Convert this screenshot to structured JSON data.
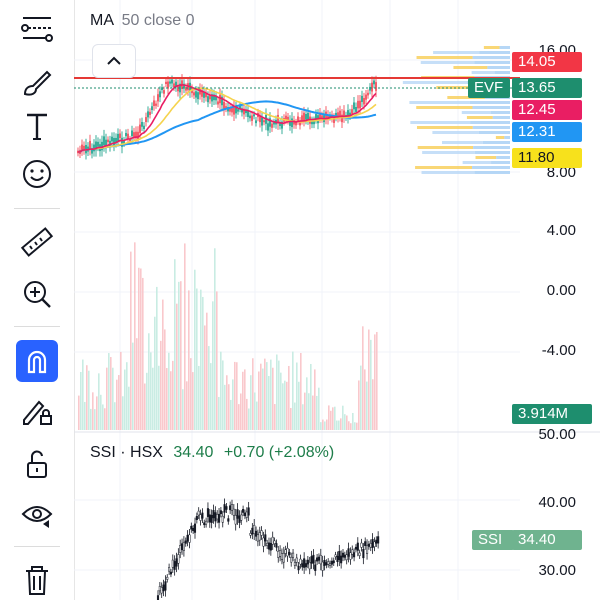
{
  "toolbar": {
    "tools": [
      {
        "name": "trend-line-tool-icon"
      },
      {
        "name": "brush-tool-icon"
      },
      {
        "name": "text-tool-icon"
      },
      {
        "name": "emoji-tool-icon"
      },
      {
        "name": "ruler-tool-icon"
      },
      {
        "name": "zoom-in-tool-icon"
      },
      {
        "name": "magnet-tool-icon",
        "active": true
      },
      {
        "name": "lock-drawing-tool-icon"
      },
      {
        "name": "unlock-icon"
      },
      {
        "name": "eye-visibility-icon"
      },
      {
        "name": "trash-icon"
      }
    ]
  },
  "main_pane": {
    "indicator_legend": {
      "label": "MA",
      "params": "50 close 0"
    },
    "y_axis_labels": [
      "16.00",
      "8.00",
      "4.00",
      "0.00",
      "-4.00",
      "50.00"
    ],
    "price_tags": [
      {
        "text": "14.05",
        "color": "#f23645"
      },
      {
        "text": "EVF",
        "color": "#1e8e6e"
      },
      {
        "text": "13.65",
        "color": "#1e8e6e"
      },
      {
        "text": "12.45",
        "color": "#e91e63"
      },
      {
        "text": "12.31",
        "color": "#2196f3"
      },
      {
        "text": "11.80",
        "color": "#f7e11c"
      }
    ],
    "volume_tag": {
      "text": "3.914M",
      "color": "#1e8e6e"
    }
  },
  "lower_pane": {
    "legend": {
      "symbol": "SSI · HSX",
      "price": "34.40",
      "change": "+0.70 (+2.08%)"
    },
    "y_axis_labels": [
      "40.00",
      "30.00"
    ],
    "price_tag": {
      "symbol": "SSI",
      "value": "34.40",
      "color": "#6fb38f"
    }
  }
}
